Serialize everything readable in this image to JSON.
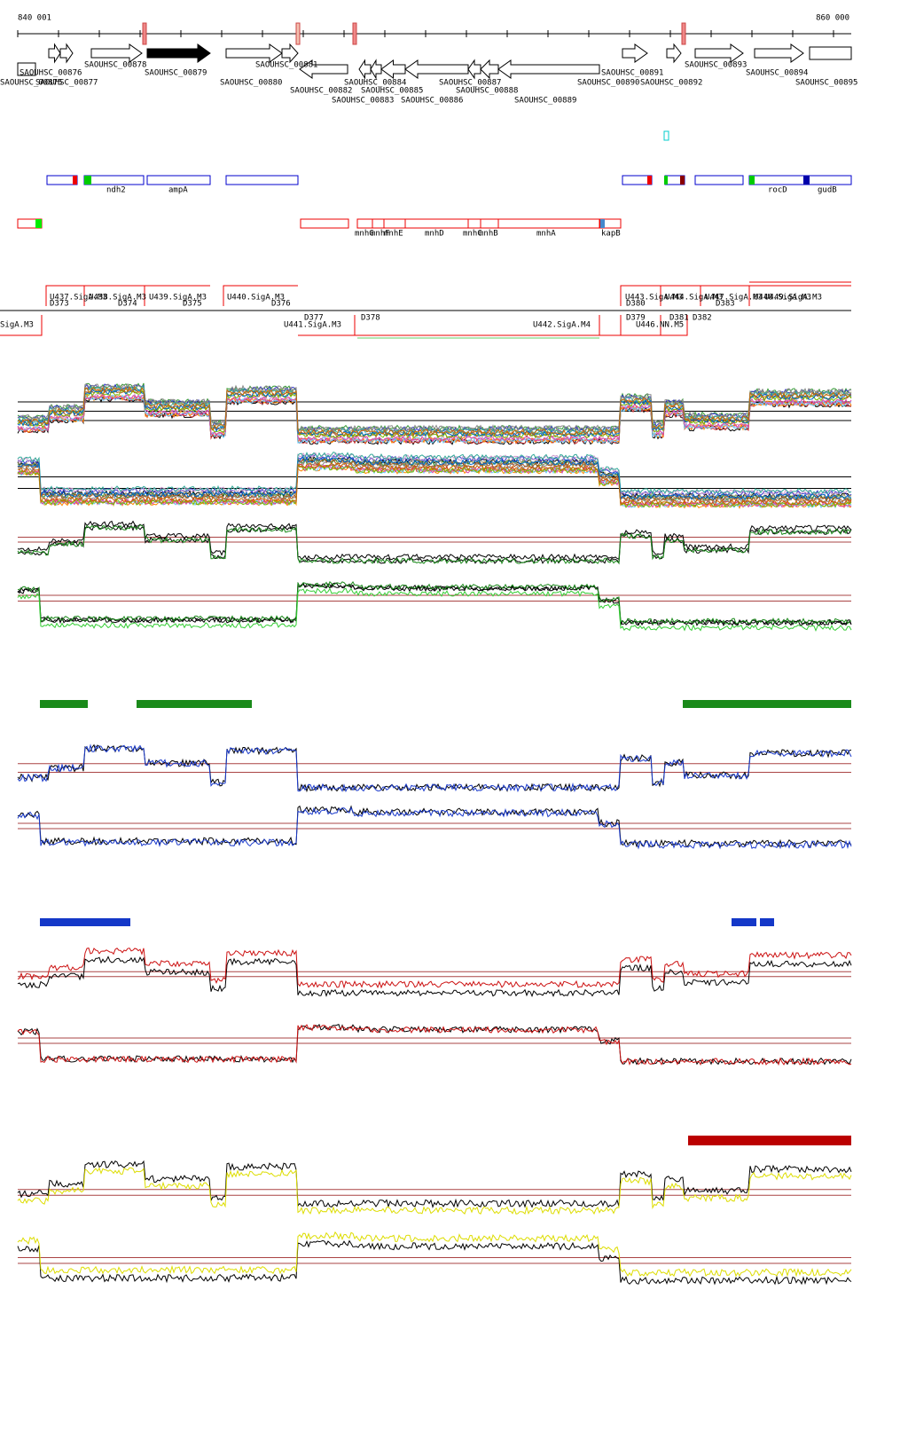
{
  "ruler": {
    "start": "840 001",
    "end": "860 000"
  },
  "genes": [
    "SAOUHSC_00876",
    "SAOUHSC_00875",
    "SAOUHSC_00877",
    "SAOUHSC_00878",
    "SAOUHSC_00879",
    "SAOUHSC_00880",
    "SAOUHSC_00881",
    "SAOUHSC_00882",
    "SAOUHSC_00883",
    "SAOUHSC_00884",
    "SAOUHSC_00885",
    "SAOUHSC_00886",
    "SAOUHSC_00887",
    "SAOUHSC_00888",
    "SAOUHSC_00889",
    "SAOUHSC_00890",
    "SAOUHSC_00891",
    "SAOUHSC_00892",
    "SAOUHSC_00893",
    "SAOUHSC_00894",
    "SAOUHSC_00895"
  ],
  "gene_names": [
    "ndh2",
    "ampA",
    "rocD",
    "gudB",
    "mnhG",
    "mnhF",
    "mnhE",
    "mnhD",
    "mnhC",
    "mnhB",
    "mnhA",
    "kapB"
  ],
  "segments": [
    "U437.SigA.M3",
    "U438.SigA.M3",
    "U439.SigA.M3",
    "U440.SigA.M3",
    "U443.SigA.M3",
    "U444.SigA.M3",
    "U447.SigA.M3",
    "U448.SigA.M3",
    "U449.SigA.M3",
    "D373",
    "D374",
    "D375",
    "D376",
    "D377",
    "D378",
    "D380",
    "D379",
    "D381",
    "D382",
    "D383",
    "SigA.M3",
    "U441.SigA.M3",
    "U442.SigA.M4",
    "U446.NN.M5"
  ]
}
